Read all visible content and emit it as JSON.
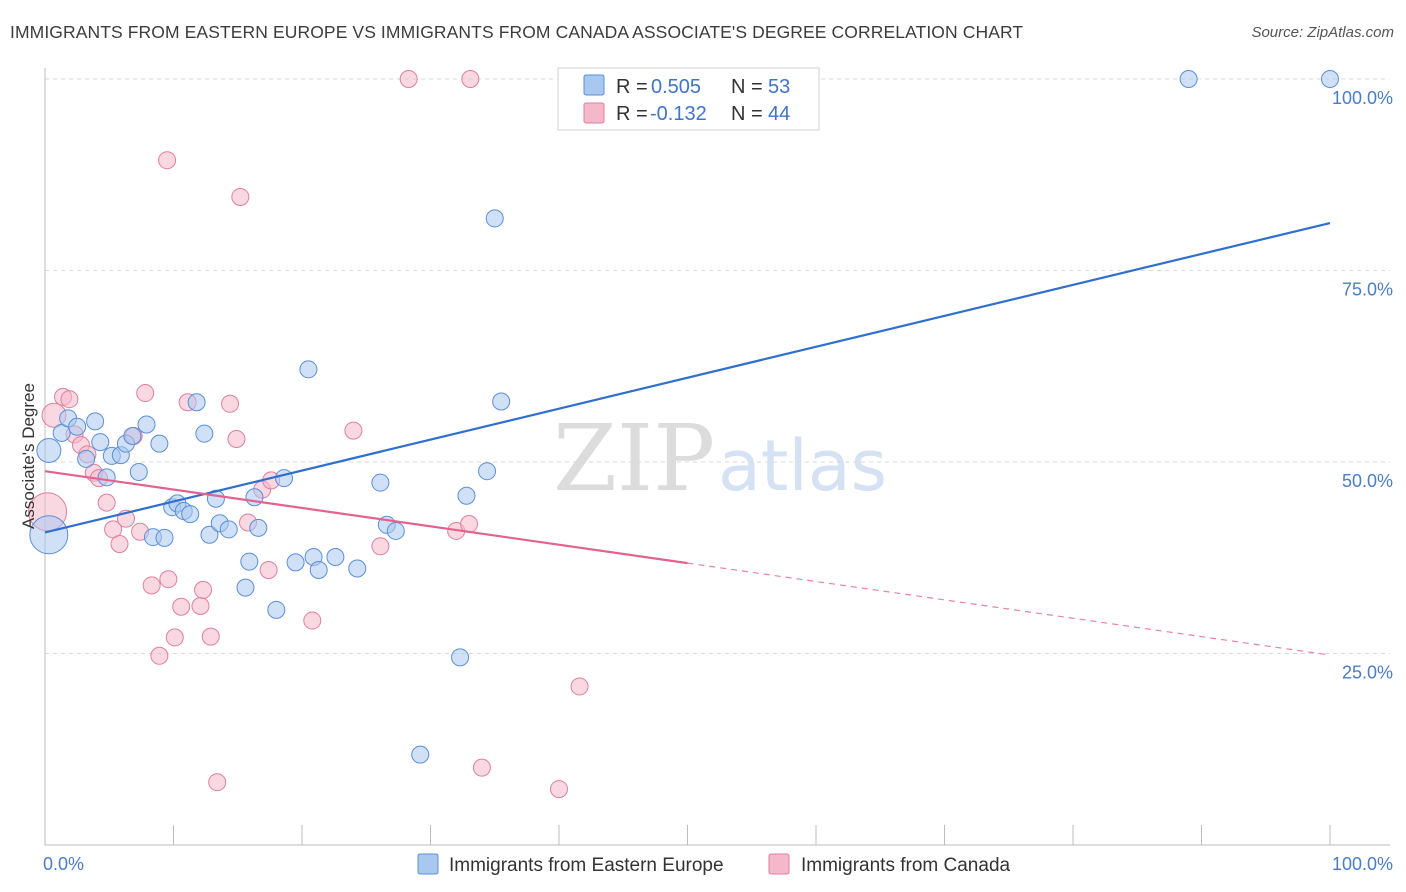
{
  "title": "IMMIGRANTS FROM EASTERN EUROPE VS IMMIGRANTS FROM CANADA ASSOCIATE'S DEGREE CORRELATION CHART",
  "source": "Source: ZipAtlas.com",
  "watermark": {
    "zip": "ZIP",
    "atlas": "atlas"
  },
  "colors": {
    "blue_fill": "#a9c8f0",
    "blue_stroke": "#5b8fd6",
    "blue_line": "#2f6fcf",
    "pink_fill": "#f5b8cb",
    "pink_stroke": "#e07f9f",
    "pink_line": "#e2638f",
    "grid": "#d9d9d9",
    "tick_label": "#4a7cc7"
  },
  "legend": {
    "rows": [
      {
        "r_label": "R =",
        "r_value": "0.505",
        "n_label": "N =",
        "n_value": "53"
      },
      {
        "r_label": "R =",
        "r_value": "-0.132",
        "n_label": "N =",
        "n_value": "44"
      }
    ]
  },
  "chart_data": {
    "type": "scatter",
    "title": "IMMIGRANTS FROM EASTERN EUROPE VS IMMIGRANTS FROM CANADA ASSOCIATE'S DEGREE CORRELATION CHART",
    "xlabel": "",
    "ylabel": "Associate's Degree",
    "xlim": [
      0,
      100
    ],
    "ylim": [
      0,
      100
    ],
    "x_tick_labels": [
      "0.0%",
      "100.0%"
    ],
    "y_ticks": [
      25,
      50,
      75,
      100
    ],
    "y_tick_labels": [
      "25.0%",
      "50.0%",
      "75.0%",
      "100.0%"
    ],
    "grid": "horizontal dashed",
    "legend_position": "top-center",
    "series": [
      {
        "name": "Immigrants from Eastern Europe",
        "color": "#a9c8f0",
        "trend": {
          "x": [
            0,
            100
          ],
          "y": [
            40.8,
            81.2
          ],
          "style": "solid"
        },
        "points": [
          {
            "x": 0.3,
            "y": 40.5,
            "s": 3
          },
          {
            "x": 0.3,
            "y": 51.5,
            "s": 2
          },
          {
            "x": 1.3,
            "y": 53.8,
            "s": 1
          },
          {
            "x": 1.8,
            "y": 55.7,
            "s": 1
          },
          {
            "x": 2.5,
            "y": 54.6,
            "s": 1
          },
          {
            "x": 3.2,
            "y": 50.4,
            "s": 1
          },
          {
            "x": 3.9,
            "y": 55.3,
            "s": 1
          },
          {
            "x": 4.3,
            "y": 52.6,
            "s": 1
          },
          {
            "x": 4.8,
            "y": 48.0,
            "s": 1
          },
          {
            "x": 5.2,
            "y": 50.8,
            "s": 1
          },
          {
            "x": 5.9,
            "y": 50.9,
            "s": 1
          },
          {
            "x": 6.3,
            "y": 52.4,
            "s": 1
          },
          {
            "x": 6.8,
            "y": 53.4,
            "s": 1
          },
          {
            "x": 7.3,
            "y": 48.7,
            "s": 1
          },
          {
            "x": 7.9,
            "y": 54.9,
            "s": 1
          },
          {
            "x": 8.4,
            "y": 40.2,
            "s": 1
          },
          {
            "x": 8.9,
            "y": 52.4,
            "s": 1
          },
          {
            "x": 9.3,
            "y": 40.1,
            "s": 1
          },
          {
            "x": 9.9,
            "y": 44.1,
            "s": 1
          },
          {
            "x": 10.3,
            "y": 44.6,
            "s": 1
          },
          {
            "x": 10.8,
            "y": 43.6,
            "s": 1
          },
          {
            "x": 11.3,
            "y": 43.2,
            "s": 1
          },
          {
            "x": 11.8,
            "y": 57.8,
            "s": 1
          },
          {
            "x": 12.4,
            "y": 53.7,
            "s": 1
          },
          {
            "x": 12.8,
            "y": 40.5,
            "s": 1
          },
          {
            "x": 13.3,
            "y": 45.2,
            "s": 1
          },
          {
            "x": 13.6,
            "y": 42.0,
            "s": 1
          },
          {
            "x": 14.3,
            "y": 41.2,
            "s": 1
          },
          {
            "x": 15.6,
            "y": 33.6,
            "s": 1
          },
          {
            "x": 15.9,
            "y": 37.0,
            "s": 1
          },
          {
            "x": 16.3,
            "y": 45.4,
            "s": 1
          },
          {
            "x": 16.6,
            "y": 41.4,
            "s": 1
          },
          {
            "x": 18.6,
            "y": 47.9,
            "s": 1
          },
          {
            "x": 18.0,
            "y": 30.7,
            "s": 1
          },
          {
            "x": 19.5,
            "y": 36.9,
            "s": 1
          },
          {
            "x": 20.5,
            "y": 62.1,
            "s": 1
          },
          {
            "x": 20.9,
            "y": 37.6,
            "s": 1
          },
          {
            "x": 21.3,
            "y": 35.9,
            "s": 1
          },
          {
            "x": 22.6,
            "y": 37.6,
            "s": 1
          },
          {
            "x": 24.3,
            "y": 36.1,
            "s": 1
          },
          {
            "x": 26.1,
            "y": 47.3,
            "s": 1
          },
          {
            "x": 26.6,
            "y": 41.8,
            "s": 1
          },
          {
            "x": 27.3,
            "y": 41.0,
            "s": 1
          },
          {
            "x": 29.2,
            "y": 11.8,
            "s": 1
          },
          {
            "x": 32.3,
            "y": 24.5,
            "s": 1
          },
          {
            "x": 32.8,
            "y": 45.6,
            "s": 1
          },
          {
            "x": 34.4,
            "y": 48.8,
            "s": 1
          },
          {
            "x": 35.0,
            "y": 81.8,
            "s": 1
          },
          {
            "x": 35.5,
            "y": 57.9,
            "s": 1
          },
          {
            "x": 89.0,
            "y": 100.0,
            "s": 1
          },
          {
            "x": 100.0,
            "y": 100.0,
            "s": 1
          }
        ]
      },
      {
        "name": "Immigrants from Canada",
        "color": "#f5b8cb",
        "trend": {
          "x": [
            0,
            50
          ],
          "y": [
            48.8,
            36.8
          ],
          "style": "solid",
          "extended": {
            "x": [
              50,
              100
            ],
            "y": [
              36.8,
              24.8
            ],
            "style": "dashed"
          }
        },
        "points": [
          {
            "x": 0.2,
            "y": 43.5,
            "s": 3
          },
          {
            "x": 0.7,
            "y": 56.1,
            "s": 2
          },
          {
            "x": 1.4,
            "y": 58.5,
            "s": 1
          },
          {
            "x": 1.9,
            "y": 58.2,
            "s": 1
          },
          {
            "x": 2.3,
            "y": 53.6,
            "s": 1
          },
          {
            "x": 2.8,
            "y": 52.2,
            "s": 1
          },
          {
            "x": 3.3,
            "y": 51.0,
            "s": 1
          },
          {
            "x": 3.8,
            "y": 48.6,
            "s": 1
          },
          {
            "x": 4.2,
            "y": 47.9,
            "s": 1
          },
          {
            "x": 4.8,
            "y": 44.7,
            "s": 1
          },
          {
            "x": 5.3,
            "y": 41.2,
            "s": 1
          },
          {
            "x": 5.8,
            "y": 39.3,
            "s": 1
          },
          {
            "x": 6.3,
            "y": 42.6,
            "s": 1
          },
          {
            "x": 6.9,
            "y": 53.4,
            "s": 1
          },
          {
            "x": 7.4,
            "y": 40.9,
            "s": 1
          },
          {
            "x": 7.8,
            "y": 59.0,
            "s": 1
          },
          {
            "x": 8.3,
            "y": 33.9,
            "s": 1
          },
          {
            "x": 8.9,
            "y": 24.7,
            "s": 1
          },
          {
            "x": 9.5,
            "y": 89.4,
            "s": 1
          },
          {
            "x": 9.6,
            "y": 34.7,
            "s": 1
          },
          {
            "x": 10.1,
            "y": 27.1,
            "s": 1
          },
          {
            "x": 10.6,
            "y": 31.1,
            "s": 1
          },
          {
            "x": 11.1,
            "y": 57.8,
            "s": 1
          },
          {
            "x": 12.1,
            "y": 31.2,
            "s": 1
          },
          {
            "x": 12.3,
            "y": 33.3,
            "s": 1
          },
          {
            "x": 12.9,
            "y": 27.2,
            "s": 1
          },
          {
            "x": 13.4,
            "y": 8.2,
            "s": 1
          },
          {
            "x": 14.4,
            "y": 57.6,
            "s": 1
          },
          {
            "x": 14.9,
            "y": 53.0,
            "s": 1
          },
          {
            "x": 15.2,
            "y": 84.6,
            "s": 1
          },
          {
            "x": 15.8,
            "y": 42.1,
            "s": 1
          },
          {
            "x": 16.9,
            "y": 46.4,
            "s": 1
          },
          {
            "x": 17.4,
            "y": 35.9,
            "s": 1
          },
          {
            "x": 17.6,
            "y": 47.6,
            "s": 1
          },
          {
            "x": 20.8,
            "y": 29.3,
            "s": 1
          },
          {
            "x": 24.0,
            "y": 54.1,
            "s": 1
          },
          {
            "x": 26.1,
            "y": 39.0,
            "s": 1
          },
          {
            "x": 28.3,
            "y": 100.0,
            "s": 1
          },
          {
            "x": 32.0,
            "y": 41.0,
            "s": 1
          },
          {
            "x": 33.0,
            "y": 41.9,
            "s": 1
          },
          {
            "x": 33.1,
            "y": 100.0,
            "s": 1
          },
          {
            "x": 34.0,
            "y": 10.1,
            "s": 1
          },
          {
            "x": 40.0,
            "y": 7.3,
            "s": 1
          },
          {
            "x": 41.6,
            "y": 20.7,
            "s": 1
          }
        ]
      }
    ]
  }
}
